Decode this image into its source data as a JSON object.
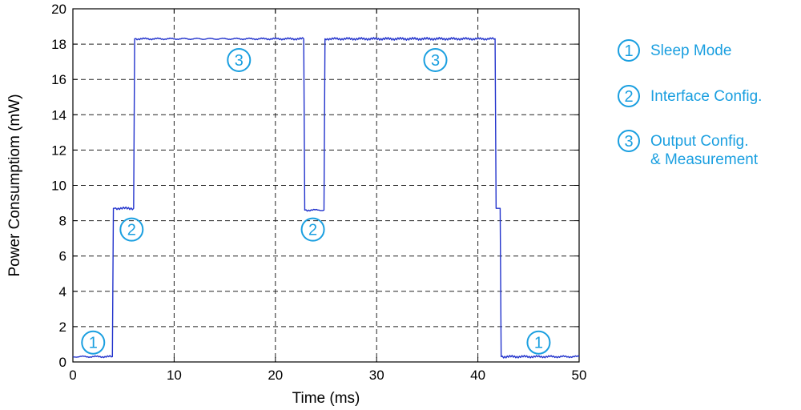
{
  "chart_data": {
    "type": "line",
    "xlabel": "Time (ms)",
    "ylabel": "Power Consumptiom (mW)",
    "xlim": [
      0,
      50
    ],
    "ylim": [
      0,
      20
    ],
    "xticks": [
      0,
      10,
      20,
      30,
      40,
      50
    ],
    "yticks": [
      0,
      2,
      4,
      6,
      8,
      10,
      12,
      14,
      16,
      18,
      20
    ],
    "grid": true,
    "line_color": "#2233cc",
    "annotation_color": "#1a9fe0",
    "series": [
      {
        "x": [
          0,
          3.9,
          4.0,
          4.1,
          6.0,
          6.1,
          22.8,
          22.9,
          24.8,
          24.9,
          41.7,
          41.8,
          42.2,
          42.3,
          50
        ],
        "y": [
          0.3,
          0.3,
          8.7,
          8.7,
          8.7,
          18.3,
          18.3,
          8.6,
          8.6,
          18.3,
          18.3,
          8.7,
          8.7,
          0.3,
          0.3
        ]
      }
    ],
    "annotations": [
      {
        "label": "1",
        "x": 2.0,
        "y": 1.1
      },
      {
        "label": "2",
        "x": 5.8,
        "y": 7.5
      },
      {
        "label": "3",
        "x": 16.4,
        "y": 17.1
      },
      {
        "label": "2",
        "x": 23.7,
        "y": 7.5
      },
      {
        "label": "3",
        "x": 35.8,
        "y": 17.1
      },
      {
        "label": "1",
        "x": 46.0,
        "y": 1.1
      }
    ],
    "legend": {
      "position": "right",
      "items": [
        {
          "number": "1",
          "text": "Sleep Mode"
        },
        {
          "number": "2",
          "text": "Interface Config."
        },
        {
          "number": "3",
          "text": "Output Config.",
          "text2": "& Measurement"
        }
      ]
    }
  }
}
